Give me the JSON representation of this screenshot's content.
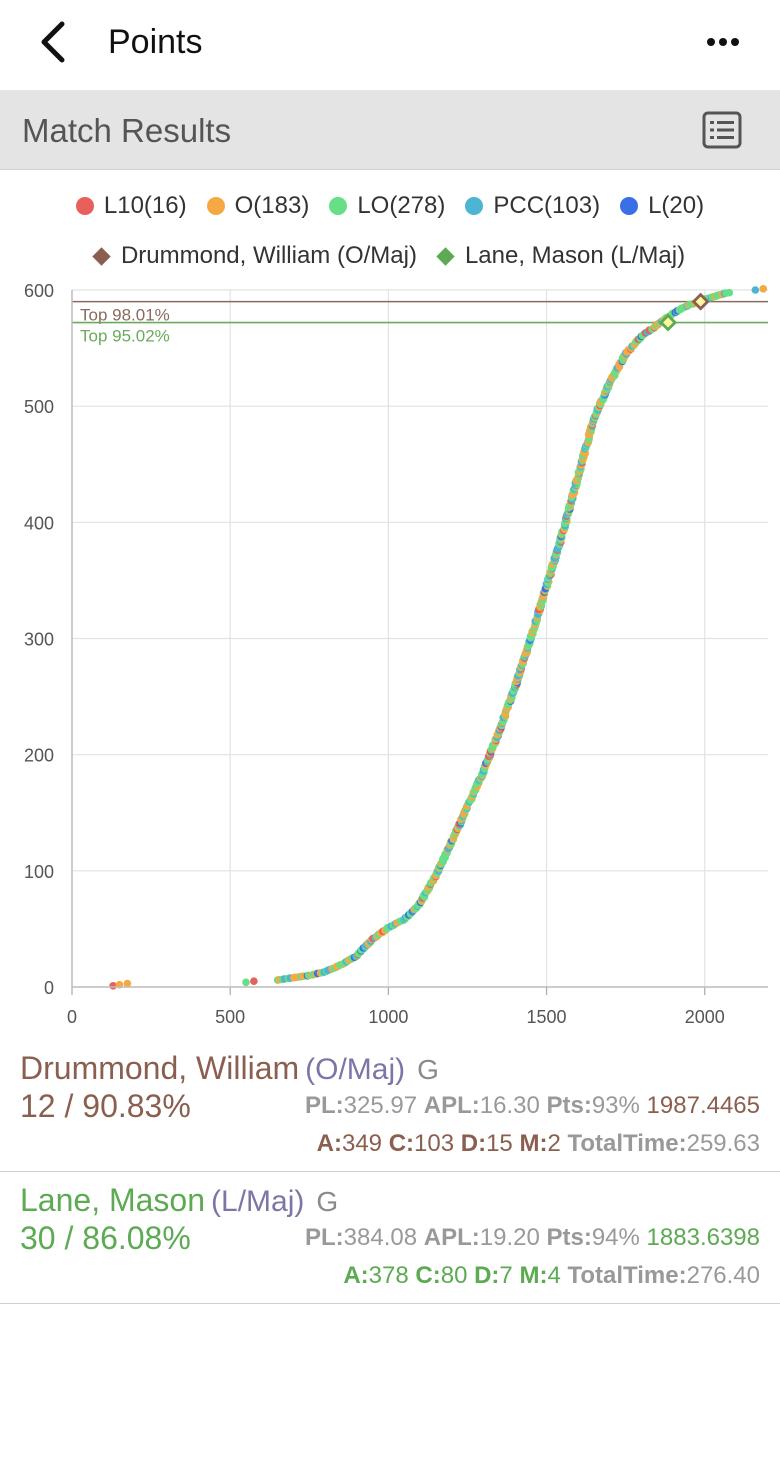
{
  "header": {
    "title": "Points",
    "back_icon": "chevron-left-icon",
    "more_icon": "more-horizontal-icon"
  },
  "section": {
    "title": "Match Results",
    "icon": "list-view-icon"
  },
  "legend": {
    "categories": [
      {
        "label": "L10(16)",
        "color": "#e8605c"
      },
      {
        "label": "O(183)",
        "color": "#f4a945"
      },
      {
        "label": "LO(278)",
        "color": "#66df86"
      },
      {
        "label": "PCC(103)",
        "color": "#4cb5d3"
      },
      {
        "label": "L(20)",
        "color": "#3b6fe6"
      }
    ],
    "players": [
      {
        "label": "Drummond, William (O/Maj)",
        "color": "#8a5f4f"
      },
      {
        "label": "Lane, Mason (L/Maj)",
        "color": "#5caa52"
      }
    ]
  },
  "chart_data": {
    "type": "scatter",
    "xlim": [
      0,
      2200
    ],
    "ylim": [
      0,
      600
    ],
    "x_ticks": [
      "0",
      "500",
      "1000",
      "1500",
      "2000"
    ],
    "y_ticks": [
      "0",
      "100",
      "200",
      "300",
      "400",
      "500",
      "600"
    ],
    "grid": true,
    "lines": [
      {
        "label": "Top 98.01%",
        "y": 590,
        "color": "#8a6a5e"
      },
      {
        "label": "Top 95.02%",
        "y": 572,
        "color": "#6aaa5c"
      }
    ],
    "curve": [
      [
        650,
        6
      ],
      [
        700,
        8
      ],
      [
        750,
        10
      ],
      [
        800,
        13
      ],
      [
        850,
        19
      ],
      [
        900,
        27
      ],
      [
        950,
        41
      ],
      [
        1000,
        51
      ],
      [
        1050,
        58
      ],
      [
        1100,
        72
      ],
      [
        1150,
        96
      ],
      [
        1200,
        125
      ],
      [
        1250,
        155
      ],
      [
        1300,
        185
      ],
      [
        1350,
        220
      ],
      [
        1400,
        258
      ],
      [
        1450,
        300
      ],
      [
        1500,
        345
      ],
      [
        1550,
        390
      ],
      [
        1600,
        440
      ],
      [
        1650,
        490
      ],
      [
        1700,
        520
      ],
      [
        1750,
        545
      ],
      [
        1800,
        560
      ],
      [
        1850,
        570
      ],
      [
        1900,
        580
      ],
      [
        1950,
        587
      ],
      [
        2000,
        592
      ],
      [
        2050,
        596
      ],
      [
        2080,
        598
      ]
    ],
    "outliers": [
      {
        "x": 130,
        "y": 1,
        "color": "#e8605c"
      },
      {
        "x": 150,
        "y": 2,
        "color": "#f4a945"
      },
      {
        "x": 175,
        "y": 3,
        "color": "#f4a945"
      },
      {
        "x": 550,
        "y": 4,
        "color": "#66df86"
      },
      {
        "x": 575,
        "y": 5,
        "color": "#e8605c"
      },
      {
        "x": 2160,
        "y": 600,
        "color": "#4cb5d3"
      },
      {
        "x": 2185,
        "y": 601,
        "color": "#f4a945"
      }
    ],
    "highlights": [
      {
        "x": 1987,
        "y": 590,
        "color": "#8a5f4f"
      },
      {
        "x": 1884,
        "y": 572,
        "color": "#5caa52"
      }
    ]
  },
  "players": [
    {
      "name": "Drummond, William",
      "division": "(O/Maj)",
      "grade": "G",
      "rank": "12 / 90.83%",
      "color": "#8a5f4f",
      "pl_label": "PL:",
      "pl": "325.97",
      "apl_label": "APL:",
      "apl": "16.30",
      "pts_label": "Pts:",
      "pts": "93%",
      "hf": "1987.4465",
      "a_label": "A:",
      "a": "349",
      "c_label": "C:",
      "c": "103",
      "d_label": "D:",
      "d": "15",
      "m_label": "M:",
      "m": "2",
      "tt_label": "TotalTime:",
      "tt": "259.63"
    },
    {
      "name": "Lane, Mason",
      "division": "(L/Maj)",
      "grade": "G",
      "rank": "30 / 86.08%",
      "color": "#5caa52",
      "pl_label": "PL:",
      "pl": "384.08",
      "apl_label": "APL:",
      "apl": "19.20",
      "pts_label": "Pts:",
      "pts": "94%",
      "hf": "1883.6398",
      "a_label": "A:",
      "a": "378",
      "c_label": "C:",
      "c": "80",
      "d_label": "D:",
      "d": "7",
      "m_label": "M:",
      "m": "4",
      "tt_label": "TotalTime:",
      "tt": "276.40"
    }
  ]
}
